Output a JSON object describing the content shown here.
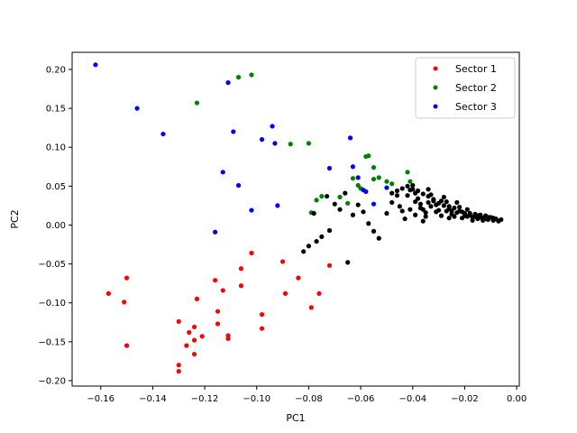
{
  "chart_data": {
    "type": "scatter",
    "title": "",
    "xlabel": "PC1",
    "ylabel": "PC2",
    "xlim": [
      -0.171,
      0.001
    ],
    "ylim": [
      -0.207,
      0.222
    ],
    "xticks": [
      -0.16,
      -0.14,
      -0.12,
      -0.1,
      -0.08,
      -0.06,
      -0.04,
      -0.02,
      0.0
    ],
    "xtick_labels": [
      "−0.16",
      "−0.14",
      "−0.12",
      "−0.10",
      "−0.08",
      "−0.06",
      "−0.04",
      "−0.02",
      "0.00"
    ],
    "yticks": [
      -0.2,
      -0.15,
      -0.1,
      -0.05,
      0.0,
      0.05,
      0.1,
      0.15,
      0.2
    ],
    "ytick_labels": [
      "−0.20",
      "−0.15",
      "−0.10",
      "−0.05",
      "0.00",
      "0.05",
      "0.10",
      "0.15",
      "0.20"
    ],
    "grid": false,
    "legend_position": "top-right",
    "series": [
      {
        "name": "Sector 1",
        "color": "#ff0000",
        "points": [
          [
            -0.15,
            -0.068
          ],
          [
            -0.157,
            -0.088
          ],
          [
            -0.151,
            -0.099
          ],
          [
            -0.15,
            -0.155
          ],
          [
            -0.13,
            -0.124
          ],
          [
            -0.123,
            -0.095
          ],
          [
            -0.124,
            -0.131
          ],
          [
            -0.126,
            -0.138
          ],
          [
            -0.127,
            -0.155
          ],
          [
            -0.124,
            -0.148
          ],
          [
            -0.124,
            -0.166
          ],
          [
            -0.121,
            -0.143
          ],
          [
            -0.13,
            -0.18
          ],
          [
            -0.13,
            -0.188
          ],
          [
            -0.116,
            -0.071
          ],
          [
            -0.115,
            -0.111
          ],
          [
            -0.115,
            -0.127
          ],
          [
            -0.111,
            -0.142
          ],
          [
            -0.111,
            -0.146
          ],
          [
            -0.113,
            -0.084
          ],
          [
            -0.106,
            -0.056
          ],
          [
            -0.106,
            -0.078
          ],
          [
            -0.102,
            -0.036
          ],
          [
            -0.098,
            -0.115
          ],
          [
            -0.098,
            -0.133
          ],
          [
            -0.09,
            -0.047
          ],
          [
            -0.089,
            -0.088
          ],
          [
            -0.084,
            -0.068
          ],
          [
            -0.079,
            -0.106
          ],
          [
            -0.076,
            -0.088
          ],
          [
            -0.072,
            -0.052
          ]
        ]
      },
      {
        "name": "Sector 2",
        "color": "#008000",
        "points": [
          [
            -0.123,
            0.157
          ],
          [
            -0.107,
            0.19
          ],
          [
            -0.102,
            0.193
          ],
          [
            -0.087,
            0.104
          ],
          [
            -0.08,
            0.105
          ],
          [
            -0.079,
            0.016
          ],
          [
            -0.077,
            0.032
          ],
          [
            -0.075,
            0.037
          ],
          [
            -0.068,
            0.036
          ],
          [
            -0.065,
            0.028
          ],
          [
            -0.063,
            0.06
          ],
          [
            -0.061,
            0.051
          ],
          [
            -0.06,
            0.047
          ],
          [
            -0.058,
            0.088
          ],
          [
            -0.057,
            0.089
          ],
          [
            -0.055,
            0.074
          ],
          [
            -0.055,
            0.059
          ],
          [
            -0.053,
            0.061
          ],
          [
            -0.05,
            0.056
          ],
          [
            -0.048,
            0.053
          ],
          [
            -0.042,
            0.068
          ],
          [
            -0.041,
            0.056
          ]
        ]
      },
      {
        "name": "Sector 3",
        "color": "#0000ff",
        "points": [
          [
            -0.162,
            0.206
          ],
          [
            -0.146,
            0.15
          ],
          [
            -0.136,
            0.117
          ],
          [
            -0.111,
            0.183
          ],
          [
            -0.109,
            0.12
          ],
          [
            -0.107,
            0.051
          ],
          [
            -0.113,
            0.068
          ],
          [
            -0.116,
            -0.009
          ],
          [
            -0.102,
            0.019
          ],
          [
            -0.098,
            0.11
          ],
          [
            -0.094,
            0.127
          ],
          [
            -0.093,
            0.105
          ],
          [
            -0.092,
            0.025
          ],
          [
            -0.072,
            0.073
          ],
          [
            -0.064,
            0.112
          ],
          [
            -0.063,
            0.075
          ],
          [
            -0.061,
            0.061
          ],
          [
            -0.059,
            0.045
          ],
          [
            -0.058,
            0.043
          ],
          [
            -0.055,
            0.027
          ],
          [
            -0.05,
            0.048
          ]
        ]
      },
      {
        "name": "",
        "color": "#000000",
        "points": [
          [
            -0.065,
            -0.048
          ],
          [
            -0.072,
            -0.007
          ],
          [
            -0.075,
            -0.015
          ],
          [
            -0.077,
            -0.021
          ],
          [
            -0.08,
            -0.027
          ],
          [
            -0.082,
            -0.034
          ],
          [
            -0.078,
            0.015
          ],
          [
            -0.073,
            0.037
          ],
          [
            -0.07,
            0.027
          ],
          [
            -0.068,
            0.02
          ],
          [
            -0.066,
            0.041
          ],
          [
            -0.063,
            0.013
          ],
          [
            -0.061,
            0.026
          ],
          [
            -0.059,
            0.017
          ],
          [
            -0.057,
            0.002
          ],
          [
            -0.055,
            -0.008
          ],
          [
            -0.053,
            -0.017
          ],
          [
            -0.05,
            0.015
          ],
          [
            -0.048,
            0.029
          ],
          [
            -0.046,
            0.038
          ],
          [
            -0.045,
            0.024
          ],
          [
            -0.044,
            0.018
          ],
          [
            -0.043,
            0.008
          ],
          [
            -0.042,
            0.038
          ],
          [
            -0.041,
            0.045
          ],
          [
            -0.04,
            0.051
          ],
          [
            -0.039,
            0.041
          ],
          [
            -0.038,
            0.034
          ],
          [
            -0.037,
            0.027
          ],
          [
            -0.036,
            0.02
          ],
          [
            -0.035,
            0.011
          ],
          [
            -0.034,
            0.046
          ],
          [
            -0.033,
            0.039
          ],
          [
            -0.032,
            0.033
          ],
          [
            -0.031,
            0.026
          ],
          [
            -0.03,
            0.019
          ],
          [
            -0.029,
            0.012
          ],
          [
            -0.028,
            0.036
          ],
          [
            -0.027,
            0.03
          ],
          [
            -0.026,
            0.024
          ],
          [
            -0.025,
            0.018
          ],
          [
            -0.024,
            0.011
          ],
          [
            -0.023,
            0.029
          ],
          [
            -0.022,
            0.023
          ],
          [
            -0.021,
            0.017
          ],
          [
            -0.02,
            0.012
          ],
          [
            -0.019,
            0.02
          ],
          [
            -0.018,
            0.015
          ],
          [
            -0.017,
            0.01
          ],
          [
            -0.016,
            0.014
          ],
          [
            -0.015,
            0.008
          ],
          [
            -0.014,
            0.013
          ],
          [
            -0.013,
            0.009
          ],
          [
            -0.012,
            0.012
          ],
          [
            -0.011,
            0.007
          ],
          [
            -0.01,
            0.01
          ],
          [
            -0.009,
            0.006
          ],
          [
            -0.008,
            0.008
          ],
          [
            -0.007,
            0.005
          ],
          [
            -0.006,
            0.007
          ],
          [
            -0.042,
            0.05
          ],
          [
            -0.04,
            0.046
          ],
          [
            -0.038,
            0.044
          ],
          [
            -0.036,
            0.04
          ],
          [
            -0.034,
            0.037
          ],
          [
            -0.032,
            0.031
          ],
          [
            -0.03,
            0.028
          ],
          [
            -0.028,
            0.025
          ],
          [
            -0.026,
            0.021
          ],
          [
            -0.024,
            0.022
          ],
          [
            -0.022,
            0.018
          ],
          [
            -0.02,
            0.015
          ],
          [
            -0.018,
            0.013
          ],
          [
            -0.016,
            0.011
          ],
          [
            -0.014,
            0.01
          ],
          [
            -0.012,
            0.008
          ],
          [
            -0.044,
            0.047
          ],
          [
            -0.046,
            0.044
          ],
          [
            -0.048,
            0.041
          ],
          [
            -0.039,
            0.03
          ],
          [
            -0.037,
            0.022
          ],
          [
            -0.035,
            0.016
          ],
          [
            -0.033,
            0.024
          ],
          [
            -0.031,
            0.017
          ],
          [
            -0.027,
            0.018
          ],
          [
            -0.025,
            0.014
          ],
          [
            -0.023,
            0.016
          ],
          [
            -0.021,
            0.009
          ],
          [
            -0.019,
            0.011
          ],
          [
            -0.017,
            0.006
          ],
          [
            -0.015,
            0.012
          ],
          [
            -0.013,
            0.006
          ],
          [
            -0.011,
            0.01
          ],
          [
            -0.009,
            0.009
          ],
          [
            -0.041,
            0.02
          ],
          [
            -0.039,
            0.013
          ],
          [
            -0.036,
            0.005
          ],
          [
            -0.034,
            0.029
          ],
          [
            -0.029,
            0.031
          ],
          [
            -0.026,
            0.009
          ]
        ]
      }
    ]
  }
}
